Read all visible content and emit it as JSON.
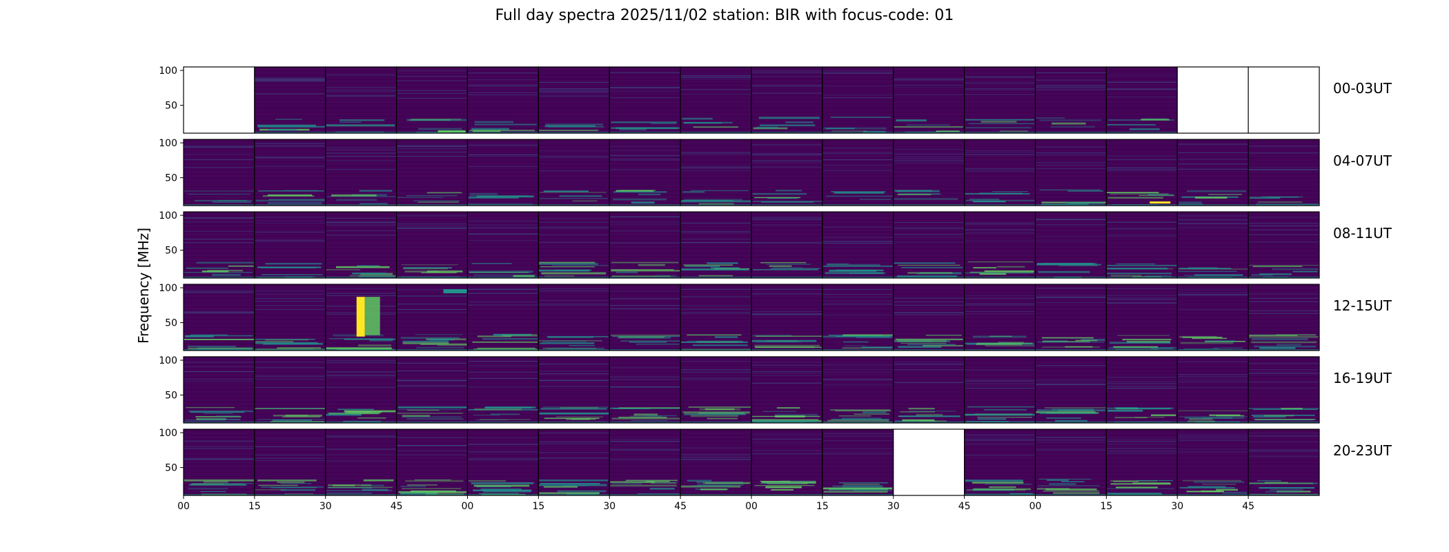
{
  "title": "Full day spectra 2025/11/02 station: BIR with focus-code: 01",
  "chart_data": {
    "type": "heatmap",
    "title": "Full day spectra 2025/11/02 station: BIR with focus-code: 01",
    "ylabel": "Frequency [MHz]",
    "xlabel": "",
    "ylim": [
      10,
      105
    ],
    "ytick_values": [
      50,
      100
    ],
    "ytick_labels": [
      "50",
      "100"
    ],
    "xtick_labels": [
      "00",
      "15",
      "30",
      "45",
      "00",
      "15",
      "30",
      "45",
      "00",
      "15",
      "30",
      "45",
      "00",
      "15",
      "30",
      "45"
    ],
    "colormap": "viridis",
    "colors": {
      "background": "#440154",
      "mid": "#21918c",
      "high": "#5ec962",
      "peak": "#fde725",
      "frame": "#000000"
    },
    "rows": [
      {
        "label": "00-03UT",
        "missing_panels": [
          0,
          14,
          15
        ]
      },
      {
        "label": "04-07UT",
        "missing_panels": []
      },
      {
        "label": "08-11UT",
        "missing_panels": []
      },
      {
        "label": "12-15UT",
        "missing_panels": []
      },
      {
        "label": "16-19UT",
        "missing_panels": []
      },
      {
        "label": "20-23UT",
        "missing_panels": [
          10
        ]
      }
    ],
    "panels_per_row": 16,
    "minutes_per_panel": 15
  }
}
